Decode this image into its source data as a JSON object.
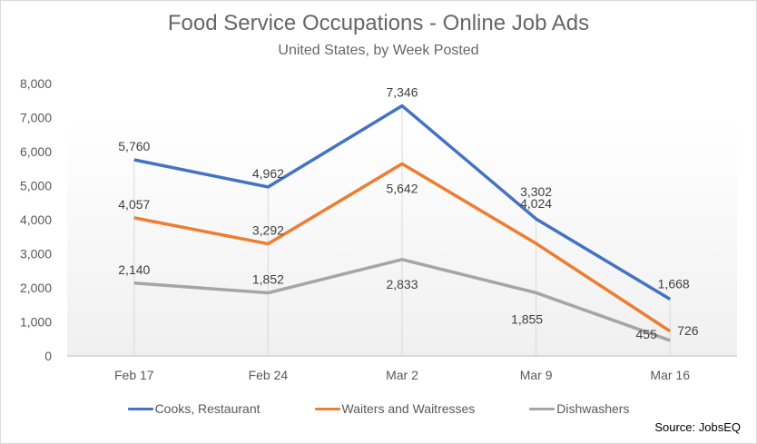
{
  "chart_data": {
    "type": "line",
    "title": "Food Service Occupations - Online Job Ads",
    "subtitle": "United States, by Week Posted",
    "xlabel": "",
    "ylabel": "",
    "categories": [
      "Feb 17",
      "Feb 24",
      "Mar 2",
      "Mar 9",
      "Mar 16"
    ],
    "ylim": [
      0,
      8000
    ],
    "yticks": [
      0,
      1000,
      2000,
      3000,
      4000,
      5000,
      6000,
      7000,
      8000
    ],
    "ytick_labels": [
      "0",
      "1,000",
      "2,000",
      "3,000",
      "4,000",
      "5,000",
      "6,000",
      "7,000",
      "8,000"
    ],
    "grid": "vertical",
    "legend_position": "bottom",
    "series": [
      {
        "name": "Cooks, Restaurant",
        "color": "#4472C4",
        "values": [
          5760,
          4962,
          7346,
          4024,
          1668
        ],
        "labels": [
          "5,760",
          "4,962",
          "7,346",
          "4,024",
          "1,668"
        ]
      },
      {
        "name": "Waiters and Waitresses",
        "color": "#ED7D31",
        "values": [
          4057,
          3292,
          5642,
          3302,
          726
        ],
        "labels": [
          "4,057",
          "3,292",
          "5,642",
          "3,302",
          "726"
        ]
      },
      {
        "name": "Dishwashers",
        "color": "#A5A5A5",
        "values": [
          2140,
          1852,
          2833,
          1855,
          455
        ],
        "labels": [
          "2,140",
          "1,852",
          "2,833",
          "1,855",
          "455"
        ]
      }
    ]
  },
  "source": "Source: JobsEQ"
}
